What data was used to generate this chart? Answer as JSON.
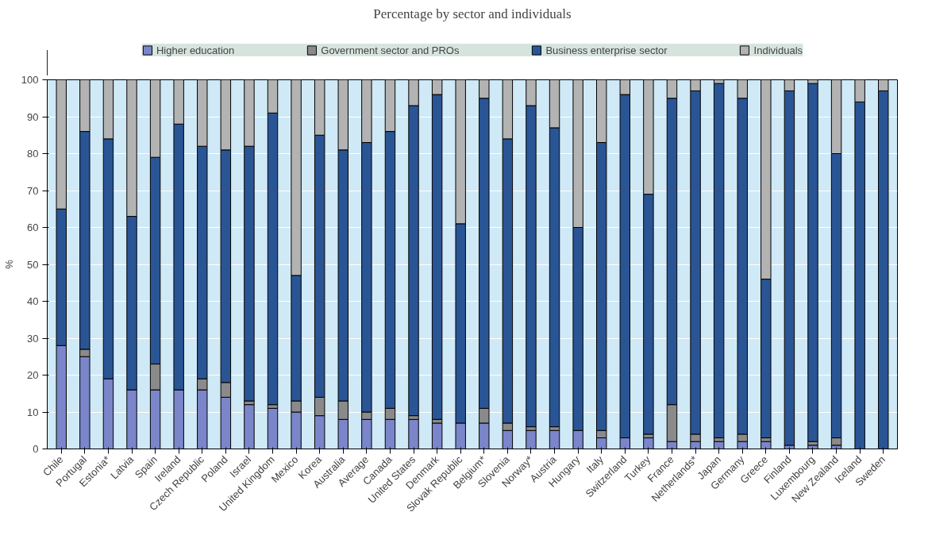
{
  "chart_data": {
    "type": "bar",
    "title": "Percentage by sector and individuals",
    "ylabel": "%",
    "stacked": true,
    "categories": [
      "Chile",
      "Portugal",
      "Estonia*",
      "Latvia",
      "Spain",
      "Ireland",
      "Czech Republic",
      "Poland",
      "Israel",
      "United Kingdom",
      "Mexico",
      "Korea",
      "Australia",
      "Average",
      "Canada",
      "United States",
      "Denmark",
      "Slovak Republic",
      "Belgium*",
      "Slovenia",
      "Norway*",
      "Austria",
      "Hungary",
      "Italy",
      "Switzerland",
      "Turkey",
      "France",
      "Netherlands*",
      "Japan",
      "Germany",
      "Greece",
      "Finland",
      "Luxembourg",
      "New Zealand",
      "Iceland",
      "Sweden"
    ],
    "series": [
      {
        "name": "Higher education",
        "color": "#7b85c9",
        "values": [
          28,
          25,
          19,
          16,
          16,
          16,
          16,
          14,
          12,
          11,
          10,
          9,
          8,
          8,
          8,
          8,
          7,
          7,
          7,
          5,
          5,
          5,
          5,
          3,
          3,
          3,
          2,
          2,
          2,
          2,
          2,
          1,
          1,
          1,
          0,
          0
        ]
      },
      {
        "name": "Government sector and PROs",
        "color": "#8a8a8a",
        "values": [
          0,
          2,
          0,
          0,
          7,
          0,
          3,
          4,
          1,
          1,
          3,
          5,
          5,
          2,
          3,
          1,
          1,
          0,
          4,
          2,
          1,
          1,
          0,
          2,
          0,
          1,
          10,
          2,
          1,
          2,
          1,
          0,
          1,
          2,
          0,
          0
        ]
      },
      {
        "name": "Business enterprise sector",
        "color": "#2a5595",
        "values": [
          37,
          59,
          65,
          47,
          56,
          72,
          63,
          63,
          69,
          79,
          34,
          71,
          68,
          73,
          75,
          84,
          88,
          54,
          84,
          77,
          87,
          81,
          55,
          78,
          93,
          65,
          83,
          93,
          96,
          91,
          43,
          96,
          97,
          77,
          94,
          97
        ]
      },
      {
        "name": "Individuals",
        "color": "#b3b3b3",
        "values": [
          35,
          14,
          16,
          37,
          21,
          12,
          18,
          19,
          18,
          9,
          53,
          15,
          19,
          17,
          14,
          7,
          4,
          39,
          5,
          16,
          7,
          13,
          40,
          17,
          4,
          31,
          5,
          3,
          1,
          5,
          54,
          3,
          1,
          20,
          6,
          3
        ]
      }
    ],
    "ylim": [
      0,
      100
    ],
    "yticks": [
      0,
      10,
      20,
      30,
      40,
      50,
      60,
      70,
      80,
      90,
      100
    ],
    "grid": "y",
    "legend": "top"
  }
}
